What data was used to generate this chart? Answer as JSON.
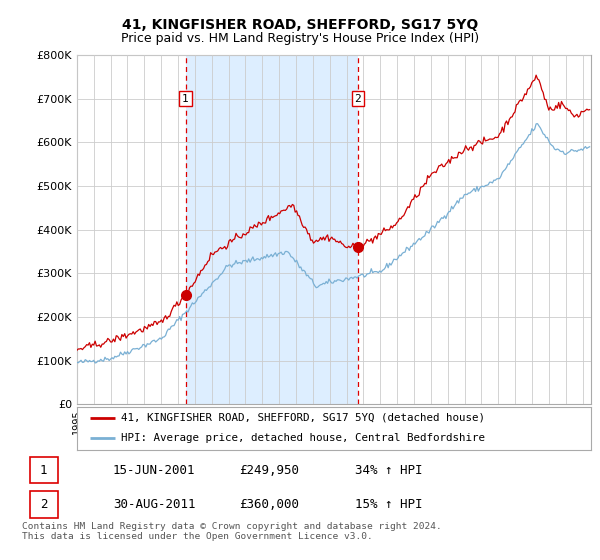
{
  "title": "41, KINGFISHER ROAD, SHEFFORD, SG17 5YQ",
  "subtitle": "Price paid vs. HM Land Registry's House Price Index (HPI)",
  "ylabel_ticks": [
    "£0",
    "£100K",
    "£200K",
    "£300K",
    "£400K",
    "£500K",
    "£600K",
    "£700K",
    "£800K"
  ],
  "ytick_values": [
    0,
    100000,
    200000,
    300000,
    400000,
    500000,
    600000,
    700000,
    800000
  ],
  "ylim": [
    0,
    800000
  ],
  "xlim_start": 1995.0,
  "xlim_end": 2025.5,
  "vline1_x": 2001.45,
  "vline2_x": 2011.66,
  "marker1_x": 2001.45,
  "marker1_y": 249950,
  "marker2_x": 2011.66,
  "marker2_y": 360000,
  "red_color": "#cc0000",
  "blue_color": "#7ab0d4",
  "shade_color": "#ddeeff",
  "vline_color": "#dd0000",
  "background_color": "#ffffff",
  "grid_color": "#cccccc",
  "legend_label_red": "41, KINGFISHER ROAD, SHEFFORD, SG17 5YQ (detached house)",
  "legend_label_blue": "HPI: Average price, detached house, Central Bedfordshire",
  "annotation1_label": "1",
  "annotation2_label": "2",
  "table_row1": [
    "1",
    "15-JUN-2001",
    "£249,950",
    "34% ↑ HPI"
  ],
  "table_row2": [
    "2",
    "30-AUG-2011",
    "£360,000",
    "15% ↑ HPI"
  ],
  "footer": "Contains HM Land Registry data © Crown copyright and database right 2024.\nThis data is licensed under the Open Government Licence v3.0.",
  "title_fontsize": 10,
  "subtitle_fontsize": 9
}
